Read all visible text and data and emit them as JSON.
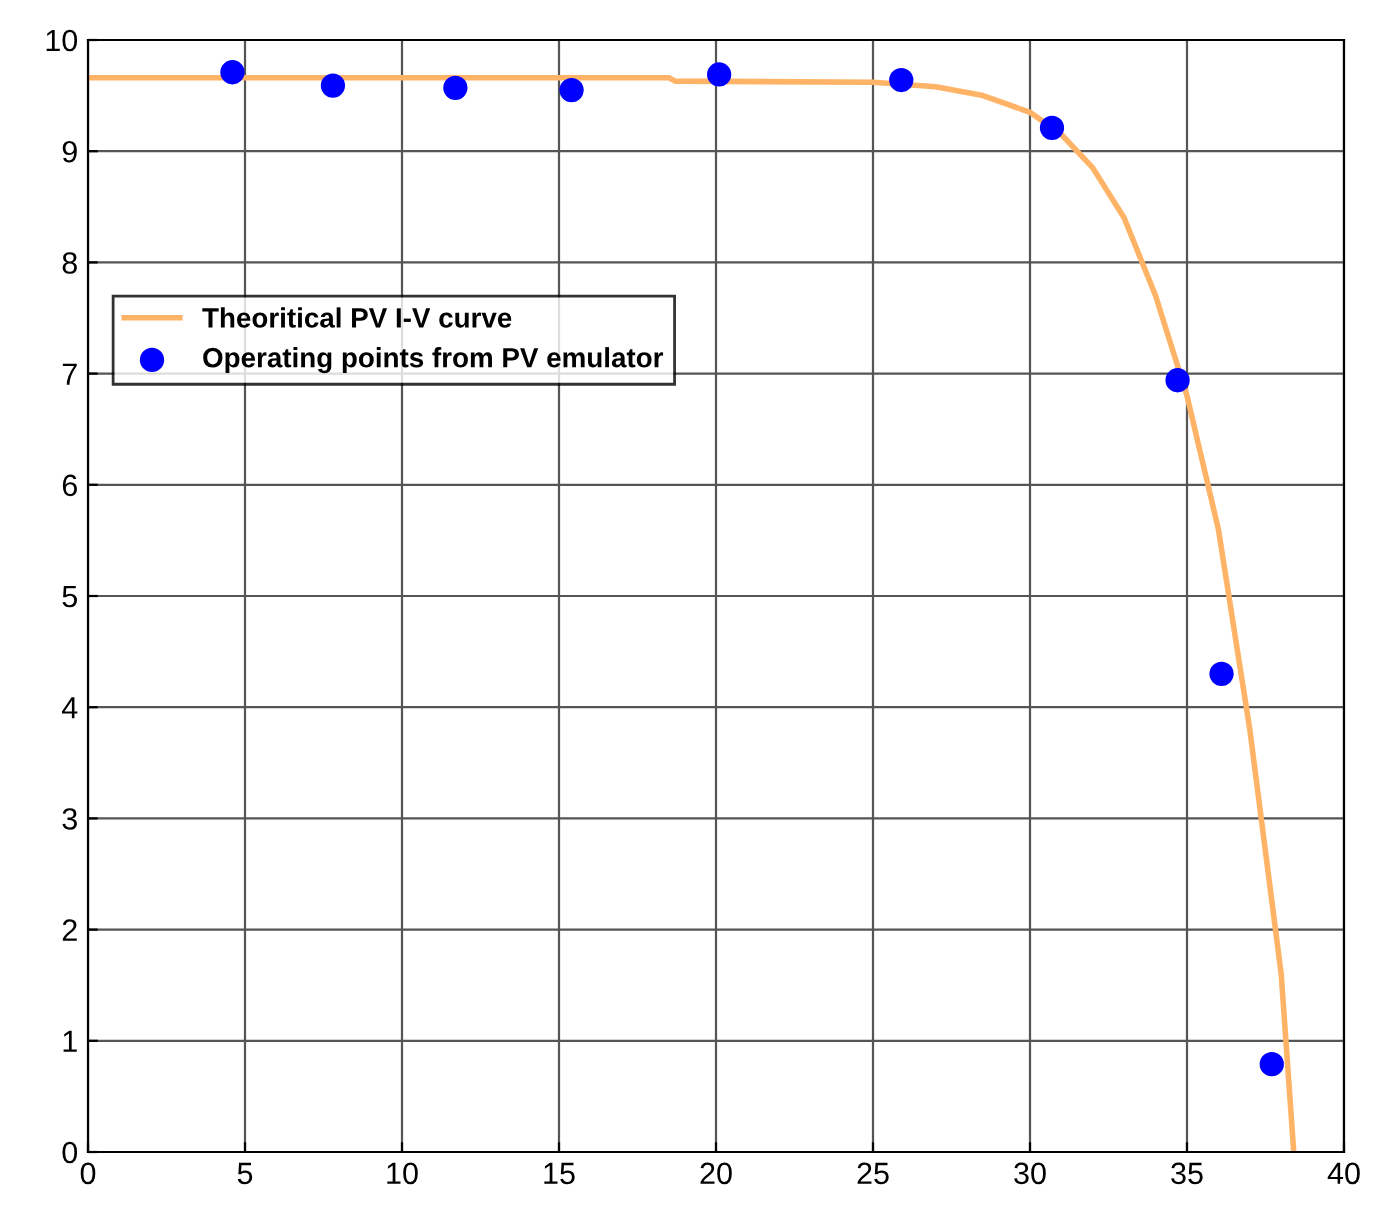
{
  "chart_data": {
    "type": "line",
    "xlim": [
      0,
      40
    ],
    "ylim": [
      0,
      10
    ],
    "xticks": [
      0,
      5,
      10,
      15,
      20,
      25,
      30,
      35,
      40
    ],
    "yticks": [
      0,
      1,
      2,
      3,
      4,
      5,
      6,
      7,
      8,
      9,
      10
    ],
    "grid": true,
    "legend": "left",
    "series": [
      {
        "name": "Theoritical PV I-V curve",
        "color": "#ffb366",
        "marker": "none",
        "line_style": "solid",
        "x": [
          0,
          18.5,
          18.7,
          25,
          27,
          28.5,
          30,
          31,
          32,
          33,
          34,
          35,
          36,
          37,
          38,
          38.4
        ],
        "values": [
          9.66,
          9.66,
          9.63,
          9.62,
          9.58,
          9.5,
          9.35,
          9.15,
          8.85,
          8.4,
          7.7,
          6.8,
          5.6,
          3.8,
          1.6,
          0
        ]
      },
      {
        "name": "Operating points from PV emulator",
        "type": "scatter",
        "color": "#0000ff",
        "marker": "circle",
        "x": [
          4.6,
          7.8,
          11.7,
          15.4,
          20.1,
          25.9,
          30.7,
          34.7,
          36.1,
          37.7
        ],
        "values": [
          9.71,
          9.59,
          9.57,
          9.55,
          9.69,
          9.64,
          9.21,
          6.94,
          4.3,
          0.79
        ]
      }
    ]
  }
}
